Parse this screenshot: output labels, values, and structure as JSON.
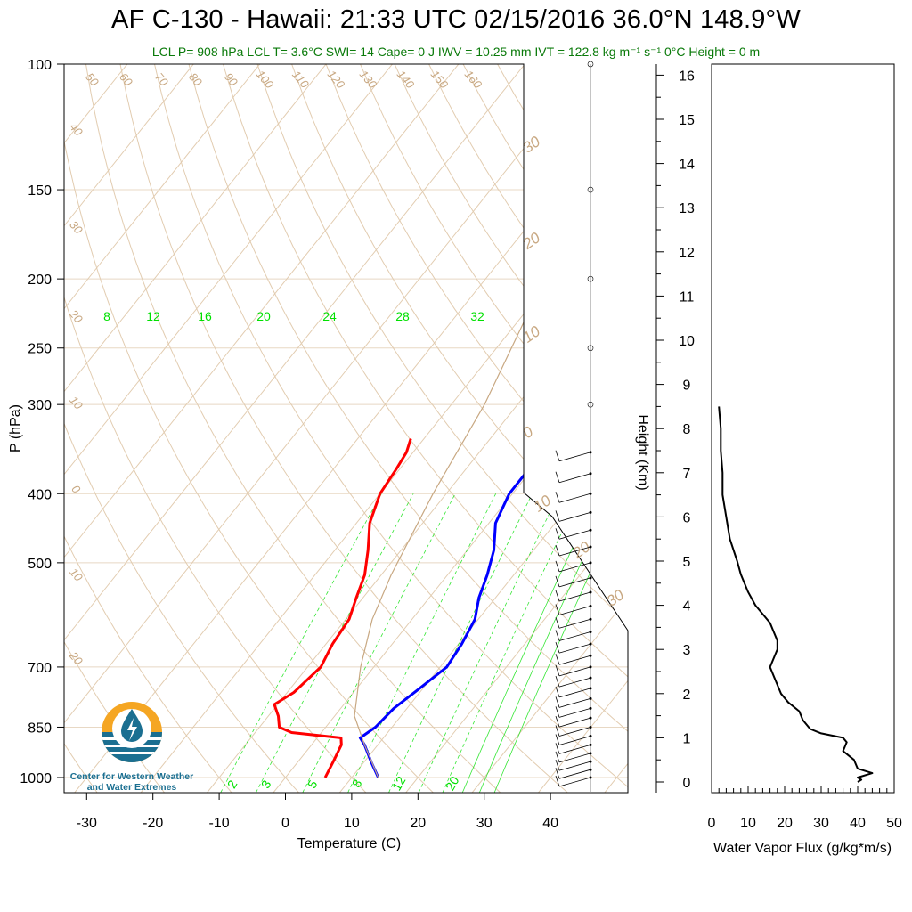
{
  "title": "AF C-130 - Hawaii: 21:33 UTC 02/15/2016  36.0°N 148.9°W",
  "subtitle": "LCL P= 908 hPa  LCL T= 3.6°C  SWI= 14  Cape= 0 J  IWV = 10.25 mm  IVT = 122.8 kg m⁻¹ s⁻¹  0°C Height = 0 m",
  "logo": {
    "line1": "Center for Western Weather",
    "line2": "and Water Extremes",
    "colors": {
      "orange": "#f5a623",
      "blue": "#1b6f91"
    }
  },
  "chart_data": [
    {
      "type": "line",
      "title": "Skew-T log-P",
      "xlabel": "Temperature (C)",
      "ylabel": "P (hPa)",
      "xlim": [
        -34,
        52
      ],
      "ylim": [
        1050,
        100
      ],
      "y_scale": "log",
      "x_ticks": [
        "-30",
        "-20",
        "-10",
        "0",
        "10",
        "20",
        "30",
        "40"
      ],
      "y_ticks": [
        "100",
        "150",
        "200",
        "250",
        "300",
        "400",
        "500",
        "700",
        "850",
        "1000"
      ],
      "height_axis": {
        "label": "Height (Km)",
        "ticks": [
          "0",
          "1",
          "2",
          "3",
          "4",
          "5",
          "6",
          "7",
          "8",
          "9",
          "10",
          "11",
          "12",
          "13",
          "14",
          "15",
          "16"
        ]
      },
      "mixing_ratio_labels": [
        "8",
        "12",
        "16",
        "20",
        "24",
        "28",
        "32"
      ],
      "mixing_ratio_bottom_labels": [
        "2",
        "3",
        "5",
        "8",
        "12",
        "20"
      ],
      "theta_labels_top": [
        "50",
        "60",
        "70",
        "80",
        "90",
        "100",
        "110",
        "120",
        "130",
        "140",
        "150",
        "160"
      ],
      "theta_labels_left": [
        "40",
        "30",
        "20",
        "10",
        "0",
        "10",
        "20"
      ],
      "theta_e_labels_right": [
        "30",
        "20",
        "10",
        "0",
        "10",
        "20",
        "30"
      ],
      "colors": {
        "temperature": "#ff0000",
        "dewpoint": "#0000ff",
        "parcel": "#c8a882",
        "mixing_ratio": "#00e000",
        "adiabat": "#c8a882"
      },
      "series": [
        {
          "quantity": "temperature",
          "points": [
            [
              6,
              1000
            ],
            [
              5.3,
              950
            ],
            [
              4.5,
              900
            ],
            [
              3.6,
              880
            ],
            [
              -4.5,
              865
            ],
            [
              -7,
              850
            ],
            [
              -8.5,
              820
            ],
            [
              -10.5,
              790
            ],
            [
              -9,
              760
            ],
            [
              -8,
              700
            ],
            [
              -9,
              650
            ],
            [
              -9.5,
              600
            ],
            [
              -11,
              560
            ],
            [
              -12.5,
              520
            ],
            [
              -15,
              480
            ],
            [
              -18,
              440
            ],
            [
              -20,
              400
            ],
            [
              -20.5,
              370
            ],
            [
              -21,
              350
            ],
            [
              -22,
              335
            ]
          ]
        },
        {
          "quantity": "dewpoint",
          "points": [
            [
              14,
              1000
            ],
            [
              11,
              950
            ],
            [
              8,
              900
            ],
            [
              6.5,
              880
            ],
            [
              7.5,
              850
            ],
            [
              8,
              800
            ],
            [
              9.5,
              750
            ],
            [
              11,
              700
            ],
            [
              10.5,
              650
            ],
            [
              9.5,
              600
            ],
            [
              7.5,
              560
            ],
            [
              6,
              520
            ],
            [
              4,
              480
            ],
            [
              1,
              440
            ],
            [
              -0.5,
              400
            ],
            [
              -0.5,
              370
            ],
            [
              -1.5,
              350
            ],
            [
              -2,
              335
            ]
          ]
        },
        {
          "quantity": "parcel",
          "points": [
            [
              14,
              1000
            ],
            [
              8,
              900
            ],
            [
              3,
              820
            ],
            [
              -2,
              700
            ],
            [
              -6,
              600
            ],
            [
              -8.5,
              520
            ],
            [
              -12,
              400
            ],
            [
              -15,
              300
            ],
            [
              -19,
              230
            ],
            [
              -10,
              180
            ],
            [
              0,
              150
            ],
            [
              10,
              125
            ],
            [
              20,
              100
            ]
          ]
        }
      ],
      "wind_barbs": {
        "levels_hpa": [
          1000,
          975,
          950,
          925,
          900,
          875,
          850,
          825,
          800,
          775,
          750,
          725,
          700,
          675,
          650,
          625,
          600,
          575,
          550,
          525,
          500,
          475,
          450,
          425,
          400,
          375,
          350
        ]
      }
    },
    {
      "type": "line",
      "xlabel": "Water Vapor Flux (g/kg*m/s)",
      "ylabel": "Height (Km)",
      "xlim": [
        0,
        50
      ],
      "ylim": [
        0,
        16.5
      ],
      "x_ticks": [
        "0",
        "10",
        "20",
        "30",
        "40",
        "50"
      ],
      "series": [
        {
          "quantity": "flux",
          "points": [
            [
              40,
              0
            ],
            [
              41,
              0.05
            ],
            [
              40,
              0.1
            ],
            [
              44,
              0.2
            ],
            [
              40,
              0.3
            ],
            [
              39,
              0.5
            ],
            [
              36,
              0.7
            ],
            [
              37,
              0.9
            ],
            [
              36,
              1.0
            ],
            [
              30,
              1.1
            ],
            [
              27,
              1.2
            ],
            [
              25,
              1.4
            ],
            [
              24,
              1.6
            ],
            [
              21,
              1.8
            ],
            [
              19,
              2.0
            ],
            [
              18,
              2.2
            ],
            [
              17,
              2.4
            ],
            [
              16,
              2.6
            ],
            [
              17,
              2.8
            ],
            [
              18,
              3.0
            ],
            [
              18,
              3.2
            ],
            [
              17,
              3.4
            ],
            [
              16,
              3.6
            ],
            [
              14,
              3.8
            ],
            [
              12,
              4.0
            ],
            [
              10,
              4.3
            ],
            [
              8,
              4.7
            ],
            [
              7,
              5.0
            ],
            [
              5,
              5.5
            ],
            [
              4,
              6.0
            ],
            [
              3,
              6.5
            ],
            [
              3,
              7.0
            ],
            [
              2.5,
              7.5
            ],
            [
              2.5,
              8.0
            ],
            [
              2,
              8.5
            ]
          ]
        }
      ]
    }
  ]
}
